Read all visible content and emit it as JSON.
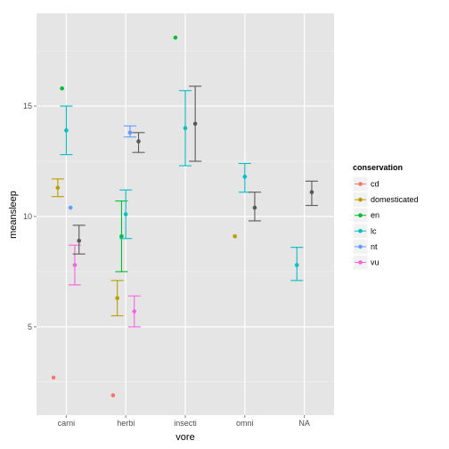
{
  "chart_data": {
    "type": "scatter",
    "xlabel": "vore",
    "ylabel": "meansleep",
    "categories": [
      "carni",
      "herbi",
      "insecti",
      "omni",
      "NA"
    ],
    "ylim": [
      1,
      19.2
    ],
    "y_ticks": [
      5,
      10,
      15
    ],
    "legend_title": "conservation",
    "legend_position": "right",
    "grid": true,
    "series": [
      {
        "name": "cd",
        "color": "#F8766D",
        "points": [
          {
            "category": "carni",
            "y": 2.7
          },
          {
            "category": "herbi",
            "y": 1.9
          }
        ]
      },
      {
        "name": "domesticated",
        "color": "#B79F00",
        "points": [
          {
            "category": "carni",
            "y": 11.3,
            "ymin": 10.9,
            "ymax": 11.7
          },
          {
            "category": "herbi",
            "y": 6.3,
            "ymin": 5.5,
            "ymax": 7.1
          },
          {
            "category": "omni",
            "y": 9.1
          }
        ]
      },
      {
        "name": "en",
        "color": "#00BA38",
        "points": [
          {
            "category": "carni",
            "y": 15.8
          },
          {
            "category": "herbi",
            "y": 9.1,
            "ymin": 7.5,
            "ymax": 10.7
          },
          {
            "category": "insecti",
            "y": 18.1
          }
        ]
      },
      {
        "name": "lc",
        "color": "#00BFC4",
        "points": [
          {
            "category": "carni",
            "y": 13.9,
            "ymin": 12.8,
            "ymax": 15.0
          },
          {
            "category": "herbi",
            "y": 10.1,
            "ymin": 9.0,
            "ymax": 11.2
          },
          {
            "category": "insecti",
            "y": 14.0,
            "ymin": 12.3,
            "ymax": 15.7
          },
          {
            "category": "omni",
            "y": 11.8,
            "ymin": 11.1,
            "ymax": 12.4
          },
          {
            "category": "NA",
            "y": 7.8,
            "ymin": 7.1,
            "ymax": 8.6
          }
        ]
      },
      {
        "name": "nt",
        "color": "#619CFF",
        "points": [
          {
            "category": "carni",
            "y": 10.4
          },
          {
            "category": "herbi",
            "y": 13.8,
            "ymin": 13.6,
            "ymax": 14.1
          }
        ]
      },
      {
        "name": "vu",
        "color": "#F564E3",
        "points": [
          {
            "category": "carni",
            "y": 7.8,
            "ymin": 6.9,
            "ymax": 8.7
          },
          {
            "category": "herbi",
            "y": 5.7,
            "ymin": 5.0,
            "ymax": 6.4
          }
        ]
      },
      {
        "name": "",
        "color": "#595959",
        "points": [
          {
            "category": "carni",
            "y": 8.9,
            "ymin": 8.3,
            "ymax": 9.6
          },
          {
            "category": "herbi",
            "y": 13.4,
            "ymin": 12.9,
            "ymax": 13.8
          },
          {
            "category": "insecti",
            "y": 14.2,
            "ymin": 12.5,
            "ymax": 15.9
          },
          {
            "category": "omni",
            "y": 10.4,
            "ymin": 9.8,
            "ymax": 11.1
          },
          {
            "category": "NA",
            "y": 11.1,
            "ymin": 10.5,
            "ymax": 11.6
          }
        ]
      }
    ]
  }
}
